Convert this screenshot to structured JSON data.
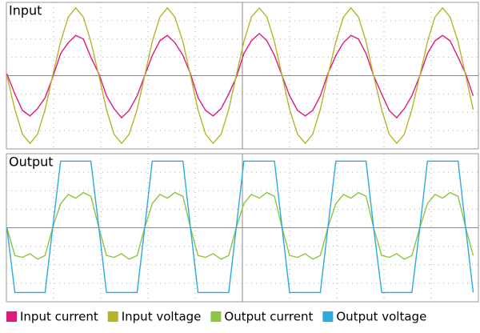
{
  "chart_data": [
    {
      "type": "line",
      "title": "Input",
      "xlim": [
        0,
        10
      ],
      "ylim": [
        -4,
        4
      ],
      "grid": true,
      "x": [
        0.01,
        0.18,
        0.34,
        0.5,
        0.66,
        0.82,
        0.98,
        1.15,
        1.31,
        1.47,
        1.63,
        1.79,
        1.96,
        2.12,
        2.28,
        2.44,
        2.6,
        2.77,
        2.93,
        3.09,
        3.25,
        3.41,
        3.57,
        3.74,
        3.9,
        4.06,
        4.22,
        4.38,
        4.55,
        4.71,
        4.87,
        5.03,
        5.19,
        5.36,
        5.52,
        5.68,
        5.84,
        6.0,
        6.17,
        6.33,
        6.49,
        6.65,
        6.81,
        6.98,
        7.14,
        7.3,
        7.46,
        7.62,
        7.78,
        7.95,
        8.11,
        8.27,
        8.43,
        8.59,
        8.76,
        8.92,
        9.08,
        9.24,
        9.4,
        9.57,
        9.73,
        9.89
      ],
      "series": [
        {
          "name": "Input current",
          "color": "#e0197d",
          "values": [
            0.1,
            -1.0,
            -1.9,
            -2.2,
            -1.8,
            -1.2,
            -0.1,
            1.2,
            1.8,
            2.2,
            2.0,
            1.0,
            0.1,
            -1.1,
            -1.8,
            -2.3,
            -1.9,
            -1.1,
            0,
            1.1,
            1.9,
            2.2,
            1.8,
            1.1,
            0.1,
            -1.2,
            -1.9,
            -2.2,
            -1.8,
            -1.0,
            -0.1,
            1.2,
            1.9,
            2.3,
            1.9,
            1.1,
            0,
            -1.1,
            -1.9,
            -2.2,
            -1.9,
            -1.1,
            0.1,
            1.1,
            1.8,
            2.2,
            2.0,
            1.2,
            0,
            -1.0,
            -1.9,
            -2.3,
            -1.8,
            -1.1,
            0,
            1.2,
            1.9,
            2.2,
            1.9,
            1.0,
            0.1,
            -1.1
          ]
        },
        {
          "name": "Input voltage",
          "color": "#b5b526",
          "values": [
            0,
            -1.85,
            -3.2,
            -3.7,
            -3.2,
            -1.85,
            0,
            1.85,
            3.2,
            3.7,
            3.2,
            1.85,
            0,
            -1.85,
            -3.2,
            -3.7,
            -3.2,
            -1.85,
            0,
            1.85,
            3.2,
            3.7,
            3.2,
            1.85,
            0,
            -1.85,
            -3.2,
            -3.7,
            -3.2,
            -1.85,
            0,
            1.85,
            3.2,
            3.7,
            3.2,
            1.85,
            0,
            -1.85,
            -3.2,
            -3.7,
            -3.2,
            -1.85,
            0,
            1.85,
            3.2,
            3.7,
            3.2,
            1.85,
            0,
            -1.85,
            -3.2,
            -3.7,
            -3.2,
            -1.85,
            0,
            1.85,
            3.2,
            3.7,
            3.2,
            1.85,
            0,
            -1.85
          ]
        }
      ]
    },
    {
      "type": "line",
      "title": "Output",
      "xlim": [
        0,
        10
      ],
      "ylim": [
        -4,
        4
      ],
      "grid": true,
      "x": [
        0.01,
        0.18,
        0.34,
        0.5,
        0.66,
        0.82,
        0.98,
        1.15,
        1.31,
        1.47,
        1.63,
        1.79,
        1.96,
        2.12,
        2.28,
        2.44,
        2.6,
        2.77,
        2.93,
        3.09,
        3.25,
        3.41,
        3.57,
        3.74,
        3.9,
        4.06,
        4.22,
        4.38,
        4.55,
        4.71,
        4.87,
        5.03,
        5.19,
        5.36,
        5.52,
        5.68,
        5.84,
        6.0,
        6.17,
        6.33,
        6.49,
        6.65,
        6.81,
        6.98,
        7.14,
        7.3,
        7.46,
        7.62,
        7.78,
        7.95,
        8.11,
        8.27,
        8.43,
        8.59,
        8.76,
        8.92,
        9.08,
        9.24,
        9.4,
        9.57,
        9.73,
        9.89
      ],
      "series": [
        {
          "name": "Output current",
          "color": "#8dc63f",
          "values": [
            0,
            -1.5,
            -1.6,
            -1.4,
            -1.7,
            -1.5,
            0,
            1.3,
            1.8,
            1.6,
            1.9,
            1.7,
            0,
            -1.5,
            -1.6,
            -1.4,
            -1.7,
            -1.5,
            0,
            1.3,
            1.8,
            1.6,
            1.9,
            1.7,
            0,
            -1.5,
            -1.6,
            -1.4,
            -1.7,
            -1.5,
            0,
            1.3,
            1.8,
            1.6,
            1.9,
            1.7,
            0,
            -1.5,
            -1.6,
            -1.4,
            -1.7,
            -1.5,
            0,
            1.3,
            1.8,
            1.6,
            1.9,
            1.7,
            0,
            -1.5,
            -1.6,
            -1.4,
            -1.7,
            -1.5,
            0,
            1.3,
            1.8,
            1.6,
            1.9,
            1.7,
            0,
            -1.5
          ]
        },
        {
          "name": "Output voltage",
          "color": "#29abe2",
          "values": [
            0,
            -3.5,
            -3.5,
            -3.5,
            -3.5,
            -3.5,
            0,
            3.6,
            3.6,
            3.6,
            3.6,
            3.6,
            0,
            -3.5,
            -3.5,
            -3.5,
            -3.5,
            -3.5,
            0,
            3.6,
            3.6,
            3.6,
            3.6,
            3.6,
            0,
            -3.5,
            -3.5,
            -3.5,
            -3.5,
            -3.5,
            0,
            3.6,
            3.6,
            3.6,
            3.6,
            3.6,
            0,
            -3.5,
            -3.5,
            -3.5,
            -3.5,
            -3.5,
            0,
            3.6,
            3.6,
            3.6,
            3.6,
            3.6,
            0,
            -3.5,
            -3.5,
            -3.5,
            -3.5,
            -3.5,
            0,
            3.6,
            3.6,
            3.6,
            3.6,
            3.6,
            0,
            -3.5
          ]
        }
      ]
    }
  ]
}
